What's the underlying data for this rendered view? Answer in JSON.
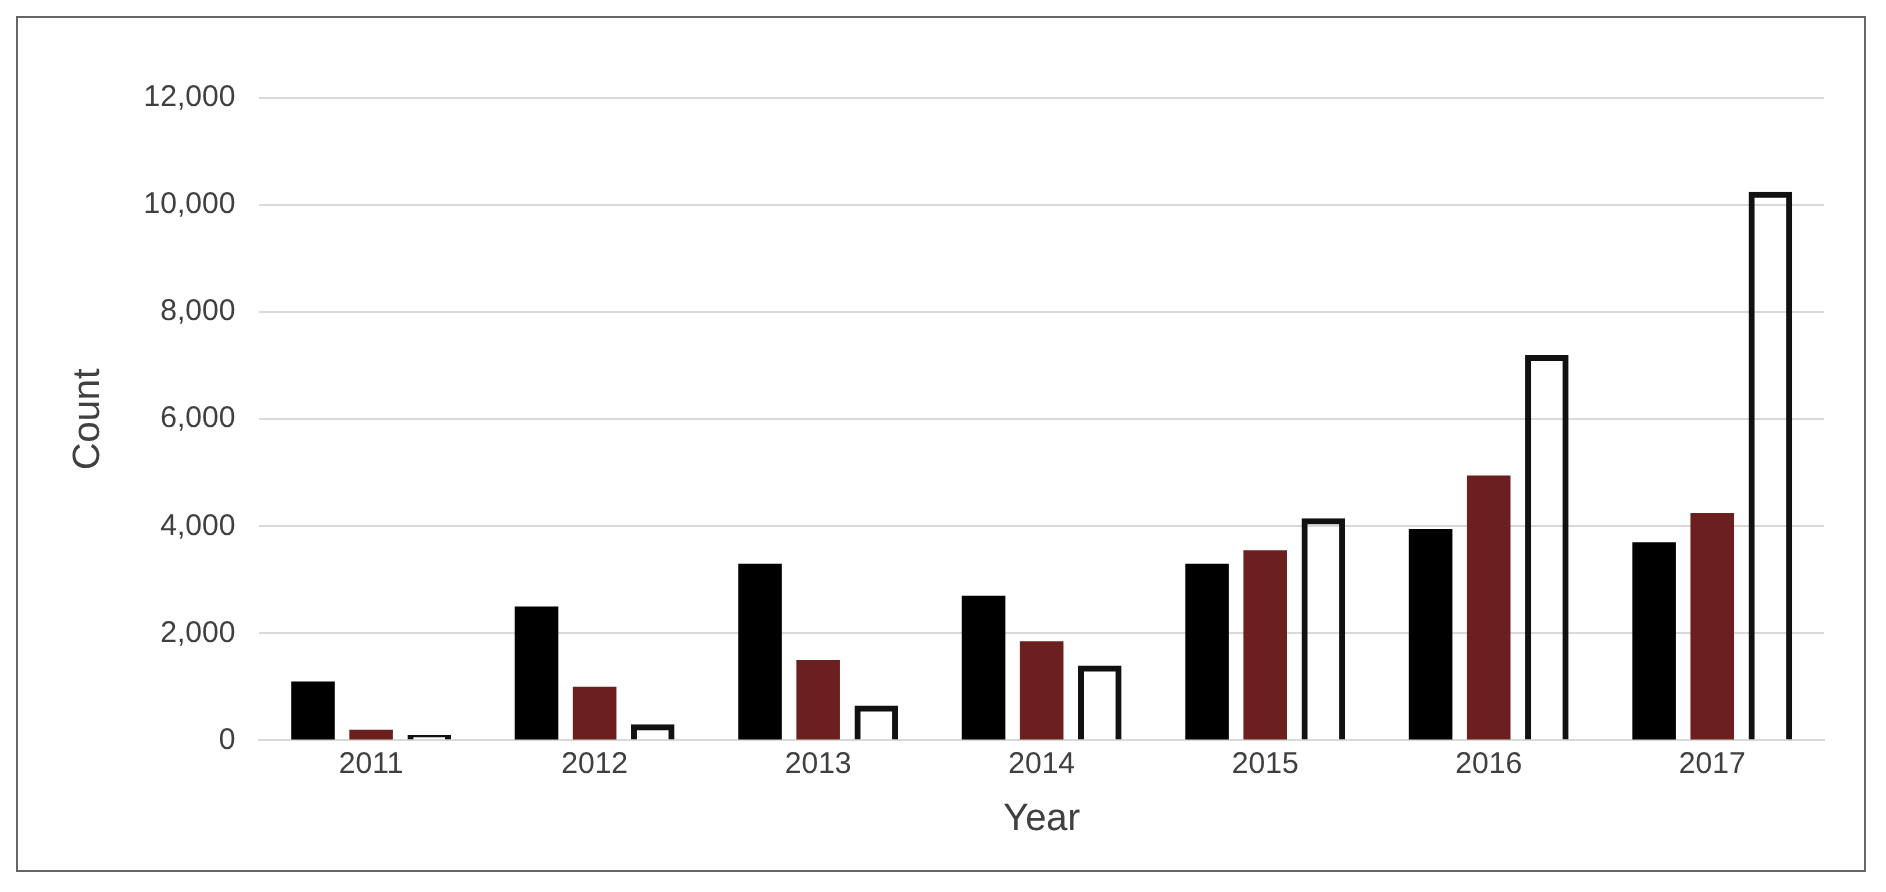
{
  "chart_data": {
    "type": "bar",
    "xlabel": "Year",
    "ylabel": "Count",
    "categories": [
      "2011",
      "2012",
      "2013",
      "2014",
      "2015",
      "2016",
      "2017"
    ],
    "series": [
      {
        "color": "#000000",
        "values": [
          1100,
          2500,
          3300,
          2700,
          3300,
          3950,
          3700
        ]
      },
      {
        "color": "#6b1f1f",
        "values": [
          200,
          1000,
          1500,
          1850,
          3550,
          4950,
          4250
        ]
      },
      {
        "color": "#111111",
        "values": [
          100,
          300,
          650,
          1400,
          4150,
          7200,
          10250
        ]
      }
    ],
    "ylim": [
      0,
      12000
    ],
    "yticks": [
      0,
      {
        "value": 2000,
        "label": "2,000"
      },
      {
        "value": 4000,
        "label": "4,000"
      },
      {
        "value": 6000,
        "label": "6,000"
      },
      {
        "value": 8000,
        "label": "8,000"
      },
      {
        "value": 10000,
        "label": "10,000"
      },
      {
        "value": 12000,
        "label": "12,000"
      }
    ],
    "grid": "y",
    "legend": false
  }
}
